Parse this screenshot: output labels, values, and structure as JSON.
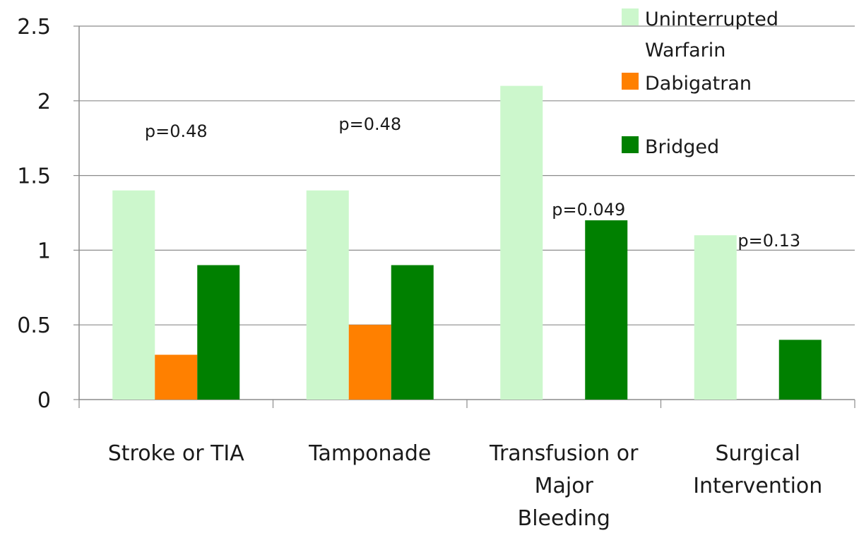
{
  "chart_data": {
    "type": "bar",
    "title": "",
    "xlabel": "",
    "ylabel": "",
    "ylim": [
      0,
      2.5
    ],
    "yticks": [
      "0",
      "0.5",
      "1",
      "1.5",
      "2",
      "2.5"
    ],
    "grid": true,
    "legend_position": "top-right",
    "categories": [
      [
        "Stroke or TIA"
      ],
      [
        "Tamponade"
      ],
      [
        "Transfusion or",
        "Major",
        "Bleeding"
      ],
      [
        "Surgical",
        "Intervention"
      ]
    ],
    "series": [
      {
        "name": "Uninterrupted Warfarin",
        "legend_lines": [
          "Uninterrupted",
          "Warfarin"
        ],
        "color": "#ccf7cc",
        "values": [
          1.4,
          1.4,
          2.1,
          1.1
        ]
      },
      {
        "name": "Dabigatran",
        "legend_lines": [
          "Dabigatran"
        ],
        "color": "#ff8000",
        "values": [
          0.3,
          0.5,
          0,
          0
        ]
      },
      {
        "name": "Bridged",
        "legend_lines": [
          "Bridged"
        ],
        "color": "#008000",
        "values": [
          0.9,
          0.9,
          1.2,
          0.4
        ]
      }
    ],
    "annotations": [
      {
        "text": "p=0.48",
        "category": 0
      },
      {
        "text": "p=0.48",
        "category": 1
      },
      {
        "text": "p=0.049",
        "category": 2
      },
      {
        "text": "p=0.13",
        "category": 3
      }
    ]
  }
}
